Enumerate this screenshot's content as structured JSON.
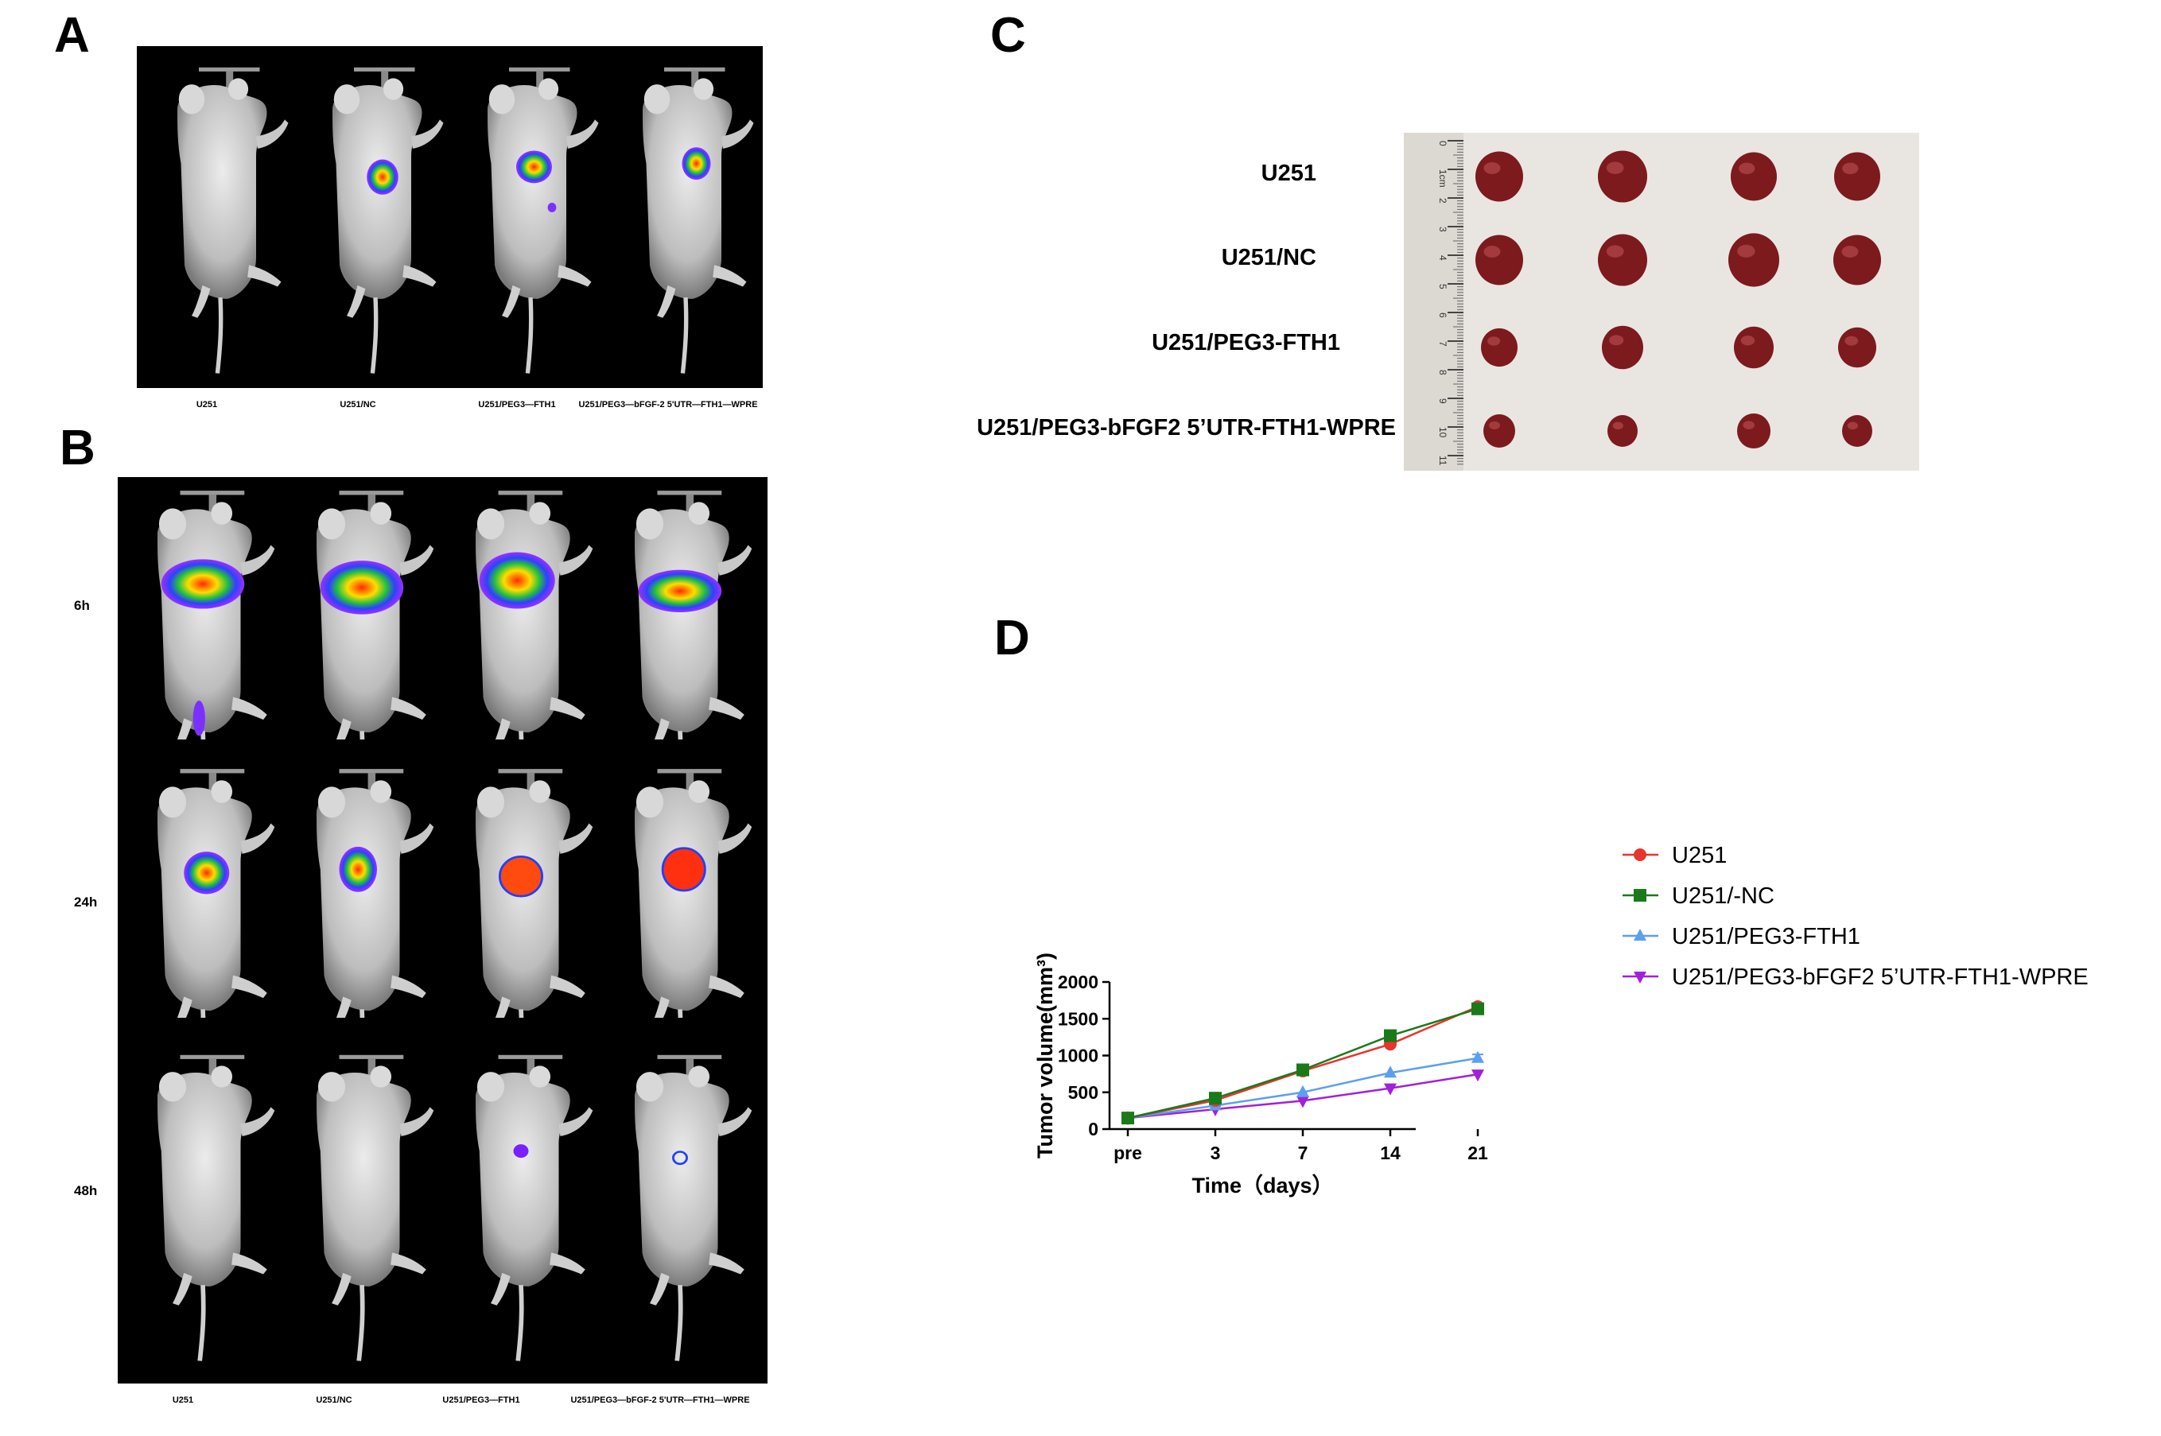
{
  "panels": {
    "a": {
      "label": "A",
      "mouse_labels": [
        "U251",
        "U251/NC",
        "U251/PEG3—FTH1",
        "U251/PEG3—bFGF-2 5'UTR—FTH1—WPRE"
      ]
    },
    "b": {
      "label": "B",
      "rows": [
        "6h",
        "24h",
        "48h"
      ],
      "mouse_labels": [
        "U251",
        "U251/NC",
        "U251/PEG3—FTH1",
        "U251/PEG3—bFGF-2 5'UTR—FTH1—WPRE"
      ]
    },
    "c": {
      "label": "C",
      "groups": [
        "U251",
        "U251/NC",
        "U251/PEG3-FTH1",
        "U251/PEG3-bFGF2 5’UTR-FTH1-WPRE"
      ],
      "ruler_marks": [
        "0",
        "1cm",
        "2",
        "3",
        "4",
        "5",
        "6",
        "7",
        "8",
        "9",
        "10",
        "11"
      ]
    },
    "d": {
      "label": "D"
    }
  },
  "chart_data": {
    "type": "line",
    "title": "",
    "xlabel": "Time（days）",
    "ylabel": "Tumor volume(mm³)",
    "categories": [
      "pre",
      "3",
      "7",
      "14",
      "21"
    ],
    "ylim": [
      0,
      2000
    ],
    "yticks": [
      "0",
      "500",
      "1000",
      "1500",
      "2000"
    ],
    "legend": "right",
    "series": [
      {
        "name": "U251",
        "marker": "circle",
        "color": "#e8352e",
        "values": [
          150,
          390,
          790,
          1155,
          1665
        ],
        "errors": [
          0,
          0,
          0,
          0,
          0
        ]
      },
      {
        "name": "U251/-NC",
        "marker": "square",
        "color": "#1a7a1a",
        "values": [
          150,
          420,
          805,
          1270,
          1635
        ],
        "errors": [
          0,
          0,
          0,
          60,
          0
        ]
      },
      {
        "name": "U251/PEG3-FTH1",
        "marker": "triangle-up",
        "color": "#5b9ff0",
        "values": [
          150,
          320,
          500,
          765,
          965
        ],
        "errors": [
          0,
          0,
          0,
          0,
          50
        ]
      },
      {
        "name": "U251/PEG3-bFGF2 5’UTR-FTH1-WPRE",
        "marker": "triangle-down",
        "color": "#a21fdc",
        "values": [
          150,
          270,
          385,
          555,
          745
        ],
        "errors": [
          0,
          0,
          0,
          0,
          0
        ]
      }
    ]
  }
}
